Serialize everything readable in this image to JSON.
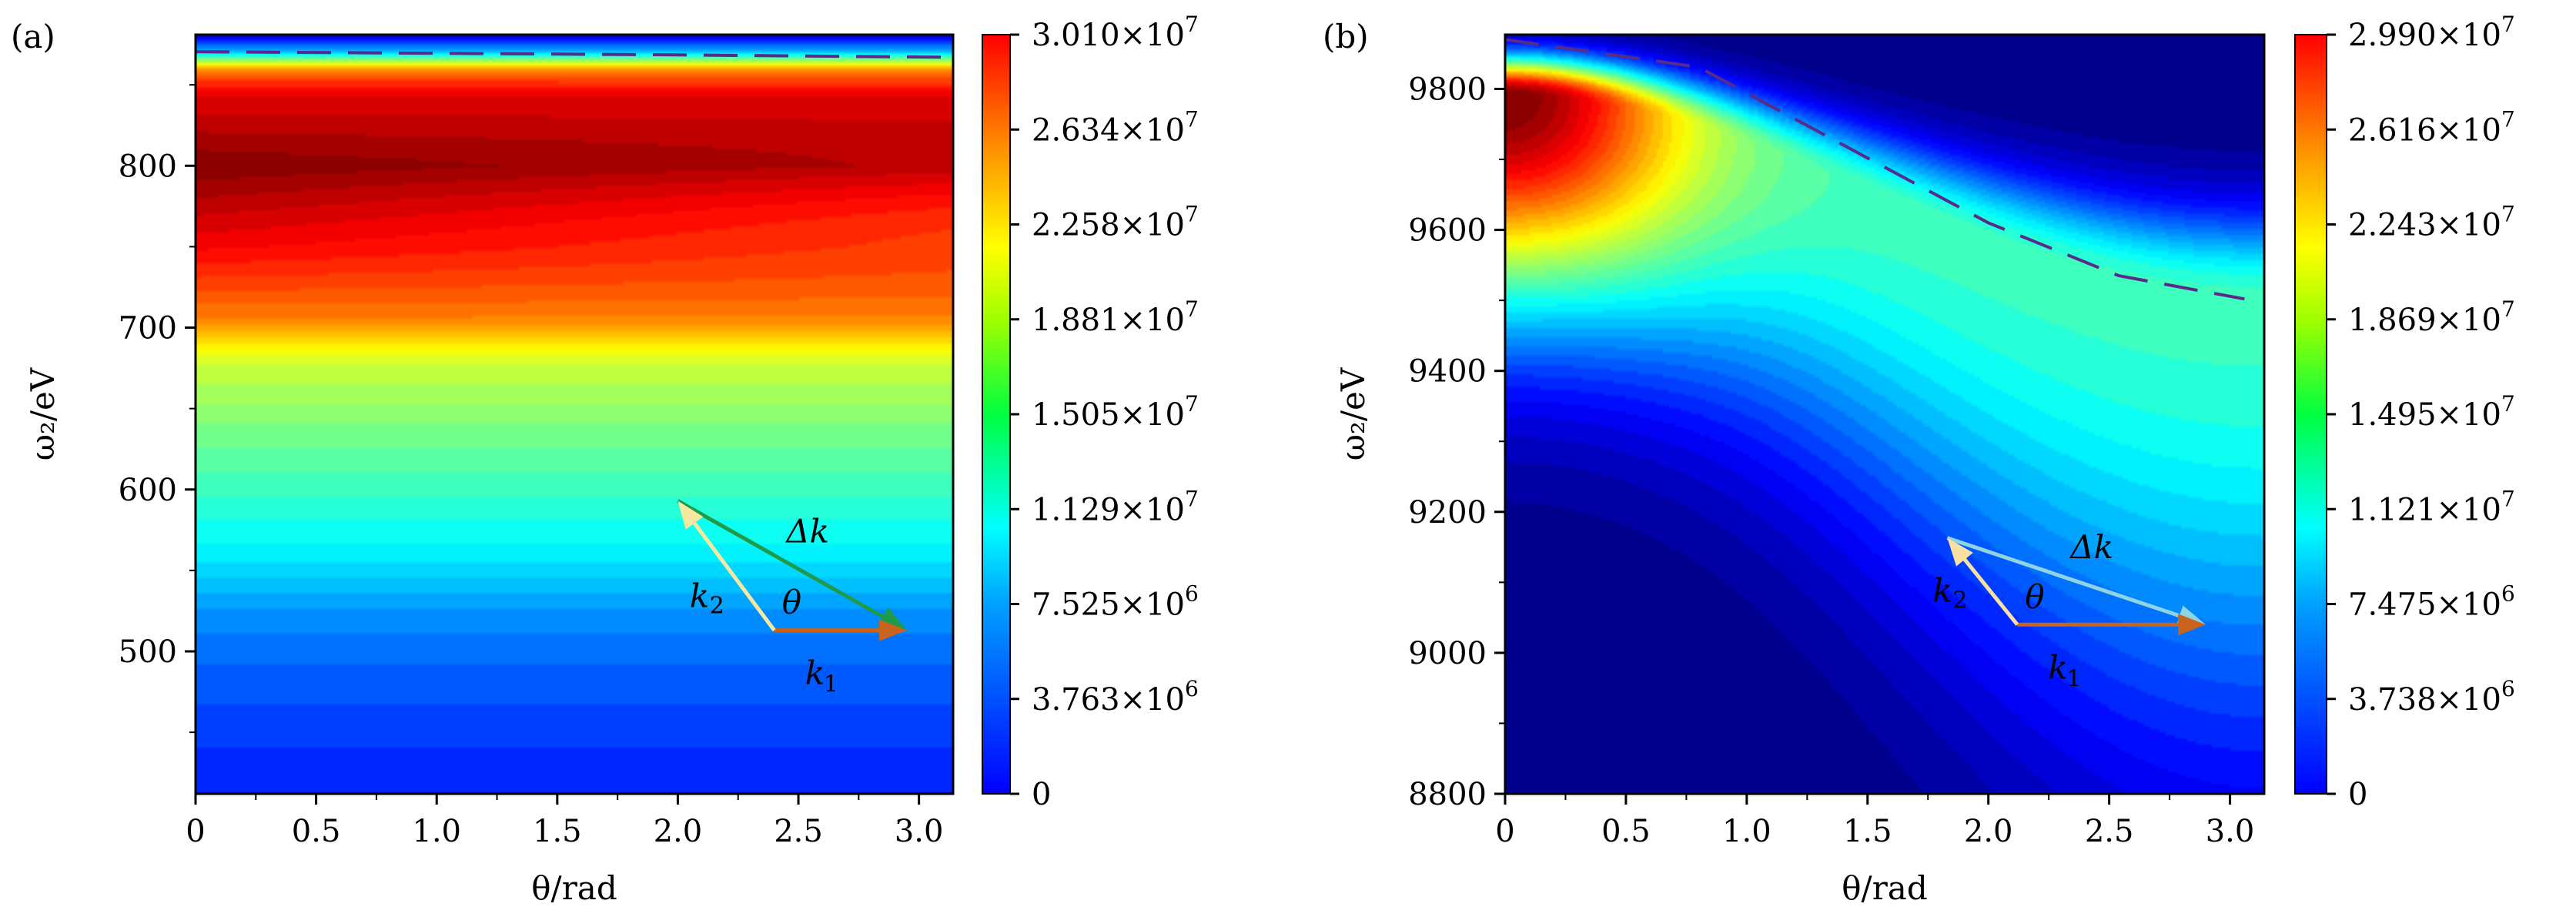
{
  "chart_data": [
    {
      "type": "heatmap",
      "panel_label": "(a)",
      "xlabel": "θ/rad",
      "ylabel": "ω₂/eV",
      "xlim": [
        0,
        3.1416
      ],
      "ylim": [
        412,
        881
      ],
      "xticks": [
        "0",
        "0.5",
        "1.0",
        "1.5",
        "2.0",
        "2.5",
        "3.0"
      ],
      "xtick_values": [
        0,
        0.5,
        1.0,
        1.5,
        2.0,
        2.5,
        3.0
      ],
      "yticks": [
        "500",
        "600",
        "700",
        "800"
      ],
      "ytick_values": [
        500,
        600,
        700,
        800
      ],
      "colorbar": {
        "range": [
          0,
          30100000
        ],
        "ticks": [
          {
            "m": "3.010",
            "e": "7"
          },
          {
            "m": "2.634",
            "e": "7"
          },
          {
            "m": "2.258",
            "e": "7"
          },
          {
            "m": "1.881",
            "e": "7"
          },
          {
            "m": "1.505",
            "e": "7"
          },
          {
            "m": "1.129",
            "e": "7"
          },
          {
            "m": "7.525",
            "e": "6"
          },
          {
            "m": "3.763",
            "e": "6"
          },
          {
            "m": "0",
            "e": ""
          }
        ]
      },
      "profile_omega": [
        412,
        450,
        500,
        530,
        560,
        600,
        640,
        680,
        705,
        750,
        800,
        845,
        860,
        870,
        881
      ],
      "profile_value": [
        4500000,
        5500000,
        7000000,
        8500000,
        11000000,
        13000000,
        15000000,
        17500000,
        22500000,
        26500000,
        30000000,
        27000000,
        22000000,
        10000000,
        2000000
      ],
      "dashed_curve": {
        "theta": [
          0,
          1.0,
          2.0,
          3.14
        ],
        "omega": [
          870.5,
          869.5,
          868.5,
          867
        ]
      },
      "vectors": {
        "origin": [
          2.4,
          513
        ],
        "k1_tip": [
          2.95,
          513
        ],
        "k2_tip": [
          2.0,
          593
        ]
      },
      "annotations": {
        "dk": "Δk",
        "k1": "k",
        "k1_sub": "1",
        "k2": "k",
        "k2_sub": "2",
        "theta": "θ"
      },
      "colors": {
        "k1": "#c8641e",
        "k2": "#f7e8a0",
        "dk": "#1f9a4a",
        "dash": "#5a2a8a"
      }
    },
    {
      "type": "heatmap",
      "panel_label": "(b)",
      "xlabel": "θ/rad",
      "ylabel": "ω₂/eV",
      "xlim": [
        0,
        3.1416
      ],
      "ylim": [
        8800,
        9877
      ],
      "xticks": [
        "0",
        "0.5",
        "1.0",
        "1.5",
        "2.0",
        "2.5",
        "3.0"
      ],
      "xtick_values": [
        0,
        0.5,
        1.0,
        1.5,
        2.0,
        2.5,
        3.0
      ],
      "yticks": [
        "8800",
        "9000",
        "9200",
        "9400",
        "9600",
        "9800"
      ],
      "ytick_values": [
        8800,
        9000,
        9200,
        9400,
        9600,
        9800
      ],
      "colorbar": {
        "range": [
          0,
          29900000
        ],
        "ticks": [
          {
            "m": "2.990",
            "e": "7"
          },
          {
            "m": "2.616",
            "e": "7"
          },
          {
            "m": "2.243",
            "e": "7"
          },
          {
            "m": "1.869",
            "e": "7"
          },
          {
            "m": "1.495",
            "e": "7"
          },
          {
            "m": "1.121",
            "e": "7"
          },
          {
            "m": "7.475",
            "e": "6"
          },
          {
            "m": "3.738",
            "e": "6"
          },
          {
            "m": "0",
            "e": ""
          }
        ]
      },
      "peak": {
        "theta": 0,
        "omega": 9790,
        "value": 29900000
      },
      "dashed_curve": {
        "theta": [
          0,
          0.8,
          1.5,
          2.0,
          2.54,
          3.06
        ],
        "omega": [
          9870,
          9831,
          9702,
          9610,
          9535,
          9502
        ]
      },
      "vectors": {
        "origin": [
          2.12,
          9040
        ],
        "k1_tip": [
          2.9,
          9040
        ],
        "k2_tip": [
          1.83,
          9163
        ]
      },
      "annotations": {
        "dk": "Δk",
        "k1": "k",
        "k1_sub": "1",
        "k2": "k",
        "k2_sub": "2",
        "theta": "θ"
      },
      "colors": {
        "k1": "#c8641e",
        "k2": "#f7e0a0",
        "dk": "#8fd4e4",
        "dash": "#5a2a8a"
      }
    }
  ]
}
